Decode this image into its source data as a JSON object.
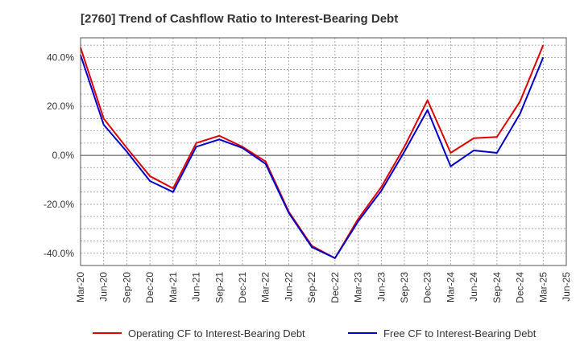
{
  "chart_data": {
    "type": "line",
    "title": "[2760]  Trend of Cashflow Ratio to Interest-Bearing Debt",
    "xlabel": "",
    "ylabel": "",
    "ylim": [
      -45,
      48
    ],
    "y_ticks": [
      40,
      20,
      0,
      -20,
      -40
    ],
    "y_tick_labels": [
      "40.0%",
      "20.0%",
      "0.0%",
      "-20.0%",
      "-40.0%"
    ],
    "x_tick_labels": [
      "Mar-20",
      "Jun-20",
      "Sep-20",
      "Dec-20",
      "Mar-21",
      "Jun-21",
      "Sep-21",
      "Dec-21",
      "Mar-22",
      "Jun-22",
      "Sep-22",
      "Dec-22",
      "Mar-23",
      "Jun-23",
      "Sep-23",
      "Dec-23",
      "Mar-24",
      "Jun-24",
      "Sep-24",
      "Dec-24",
      "Mar-25",
      "Jun-25"
    ],
    "categories": [
      "Mar-20",
      "Jun-20",
      "Sep-20",
      "Dec-20",
      "Mar-21",
      "Jun-21",
      "Sep-21",
      "Dec-21",
      "Mar-22",
      "Jun-22",
      "Sep-22",
      "Dec-22",
      "Mar-23",
      "Jun-23",
      "Sep-23",
      "Dec-23",
      "Mar-24",
      "Jun-24",
      "Sep-24",
      "Dec-24",
      "Mar-25"
    ],
    "grid": true,
    "legend_position": "bottom",
    "series": [
      {
        "name": "Operating CF to Interest-Bearing Debt",
        "color": "#dd0000",
        "values": [
          44.0,
          15.0,
          3.0,
          -8.5,
          -13.5,
          5.0,
          8.0,
          3.5,
          -2.5,
          -23.0,
          -37.0,
          -42.0,
          -26.0,
          -13.0,
          3.5,
          22.5,
          1.0,
          7.0,
          7.5,
          22.0,
          45.0
        ]
      },
      {
        "name": "Free CF to Interest-Bearing Debt",
        "color": "#0000cc",
        "values": [
          41.0,
          12.5,
          1.5,
          -10.5,
          -15.0,
          3.5,
          6.5,
          3.0,
          -3.5,
          -23.5,
          -37.5,
          -42.0,
          -27.0,
          -14.5,
          1.5,
          18.5,
          -4.5,
          2.0,
          1.0,
          17.0,
          40.0
        ]
      }
    ]
  }
}
